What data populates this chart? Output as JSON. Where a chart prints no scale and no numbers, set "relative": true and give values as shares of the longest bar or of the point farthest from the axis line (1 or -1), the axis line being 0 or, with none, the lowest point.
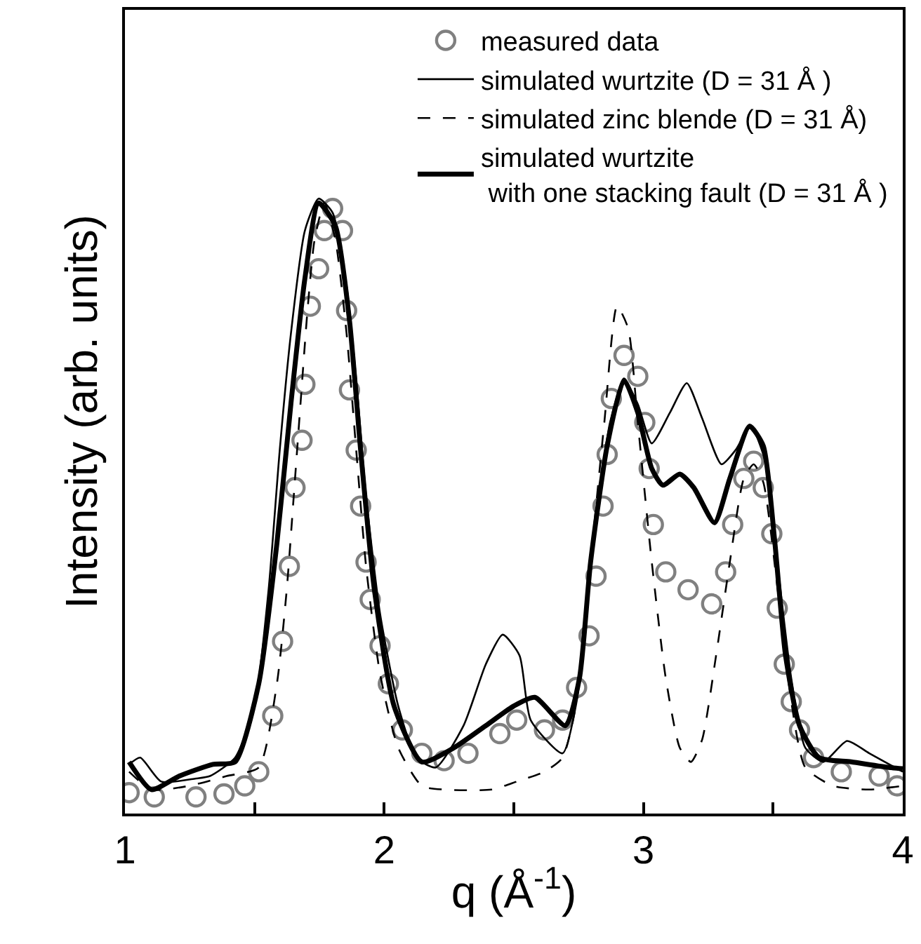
{
  "chart_data": {
    "type": "line",
    "relative": true,
    "xlabel": "q (Å$^{-1}$)",
    "ylabel": "Intensity (arb. units)",
    "xlim": [
      1,
      4
    ],
    "xticks": [
      1,
      {
        "value": 1.5,
        "label": null
      },
      2,
      {
        "value": 2.5,
        "label": null
      },
      3,
      {
        "value": 3.5,
        "label": null
      },
      4
    ],
    "legend": "top right",
    "tick_labels": "x",
    "series": [
      {
        "name": "measured data",
        "type": "scatter",
        "marker": "circle",
        "color": "#808080",
        "x": [
          1.016,
          1.113,
          1.274,
          1.382,
          1.462,
          1.516,
          1.57,
          1.608,
          1.634,
          1.656,
          1.683,
          1.694,
          1.715,
          1.747,
          1.769,
          1.801,
          1.839,
          1.855,
          1.866,
          1.892,
          1.909,
          1.93,
          1.946,
          1.984,
          2.016,
          2.07,
          2.145,
          2.231,
          2.323,
          2.446,
          2.511,
          2.618,
          2.688,
          2.742,
          2.79,
          2.817,
          2.844,
          2.86,
          2.876,
          2.925,
          2.978,
          3.005,
          3.022,
          3.038,
          3.086,
          3.172,
          3.263,
          3.317,
          3.344,
          3.387,
          3.425,
          3.462,
          3.495,
          3.516,
          3.543,
          3.57,
          3.602,
          3.656,
          3.763,
          3.909,
          3.978
        ],
        "values": [
          0.034,
          0.027,
          0.027,
          0.032,
          0.045,
          0.068,
          0.159,
          0.28,
          0.402,
          0.53,
          0.607,
          0.698,
          0.825,
          0.886,
          0.948,
          0.984,
          0.948,
          0.818,
          0.689,
          0.591,
          0.5,
          0.409,
          0.348,
          0.273,
          0.211,
          0.136,
          0.098,
          0.086,
          0.098,
          0.13,
          0.152,
          0.136,
          0.152,
          0.205,
          0.289,
          0.386,
          0.5,
          0.584,
          0.675,
          0.745,
          0.711,
          0.636,
          0.561,
          0.47,
          0.393,
          0.364,
          0.341,
          0.393,
          0.47,
          0.545,
          0.573,
          0.53,
          0.455,
          0.334,
          0.243,
          0.182,
          0.136,
          0.091,
          0.068,
          0.061,
          0.045
        ]
      },
      {
        "name": "simulated wurtzite (D = 31 Å )",
        "line_style": "solid",
        "color": "#000000",
        "x": [
          1.016,
          1.059,
          1.14,
          1.274,
          1.328,
          1.425,
          1.5,
          1.554,
          1.597,
          1.64,
          1.694,
          1.747,
          1.801,
          1.855,
          1.892,
          1.93,
          1.984,
          2.054,
          2.124,
          2.199,
          2.306,
          2.392,
          2.457,
          2.522,
          2.565,
          2.688,
          2.742,
          2.796,
          2.871,
          2.925,
          2.978,
          3.032,
          3.102,
          3.167,
          3.226,
          3.301,
          3.355,
          3.414,
          3.468,
          3.516,
          3.57,
          3.624,
          3.694,
          3.785,
          3.871,
          4.0
        ],
        "values": [
          0.08,
          0.091,
          0.052,
          0.057,
          0.061,
          0.091,
          0.175,
          0.364,
          0.591,
          0.78,
          0.948,
          1.0,
          0.977,
          0.857,
          0.705,
          0.516,
          0.325,
          0.175,
          0.091,
          0.075,
          0.143,
          0.243,
          0.291,
          0.257,
          0.152,
          0.098,
          0.182,
          0.409,
          0.636,
          0.705,
          0.666,
          0.602,
          0.652,
          0.7,
          0.643,
          0.568,
          0.591,
          0.63,
          0.575,
          0.409,
          0.22,
          0.107,
          0.084,
          0.118,
          0.098,
          0.068
        ]
      },
      {
        "name": "simulated zinc blende (D = 31 Å)",
        "line_style": "dashed",
        "color": "#000000",
        "x": [
          1.016,
          1.102,
          1.247,
          1.392,
          1.516,
          1.586,
          1.624,
          1.651,
          1.677,
          1.704,
          1.731,
          1.769,
          1.812,
          1.855,
          1.892,
          1.93,
          1.984,
          2.054,
          2.145,
          2.231,
          2.414,
          2.511,
          2.618,
          2.688,
          2.742,
          2.796,
          2.849,
          2.898,
          2.941,
          2.978,
          3.032,
          3.086,
          3.14,
          3.183,
          3.226,
          3.28,
          3.333,
          3.387,
          3.425,
          3.462,
          3.516,
          3.57,
          3.624,
          3.731,
          3.871,
          4.0
        ],
        "values": [
          0.068,
          0.039,
          0.045,
          0.061,
          0.075,
          0.211,
          0.364,
          0.516,
          0.666,
          0.818,
          0.932,
          0.993,
          0.932,
          0.78,
          0.591,
          0.402,
          0.227,
          0.107,
          0.045,
          0.039,
          0.039,
          0.052,
          0.068,
          0.091,
          0.182,
          0.409,
          0.636,
          0.825,
          0.789,
          0.636,
          0.409,
          0.22,
          0.107,
          0.084,
          0.12,
          0.257,
          0.409,
          0.545,
          0.568,
          0.539,
          0.37,
          0.182,
          0.075,
          0.045,
          0.039,
          0.045
        ]
      },
      {
        "name": "simulated wurtzite\n with one stacking fault (D = 31 Å )",
        "line_style": "solid",
        "color": "#000000",
        "x": [
          1.016,
          1.102,
          1.21,
          1.339,
          1.425,
          1.516,
          1.586,
          1.64,
          1.694,
          1.747,
          1.812,
          1.866,
          1.909,
          1.962,
          2.038,
          2.145,
          2.269,
          2.392,
          2.5,
          2.581,
          2.699,
          2.753,
          2.796,
          2.86,
          2.925,
          2.978,
          3.032,
          3.075,
          3.14,
          3.194,
          3.274,
          3.333,
          3.409,
          3.462,
          3.505,
          3.548,
          3.602,
          3.677,
          3.801,
          3.946,
          4.0
        ],
        "values": [
          0.084,
          0.039,
          0.061,
          0.08,
          0.084,
          0.211,
          0.439,
          0.666,
          0.87,
          0.993,
          0.955,
          0.802,
          0.591,
          0.364,
          0.175,
          0.084,
          0.107,
          0.143,
          0.175,
          0.189,
          0.143,
          0.22,
          0.409,
          0.598,
          0.705,
          0.652,
          0.561,
          0.534,
          0.552,
          0.53,
          0.473,
          0.545,
          0.63,
          0.598,
          0.448,
          0.257,
          0.143,
          0.091,
          0.084,
          0.075,
          0.073
        ]
      }
    ]
  }
}
